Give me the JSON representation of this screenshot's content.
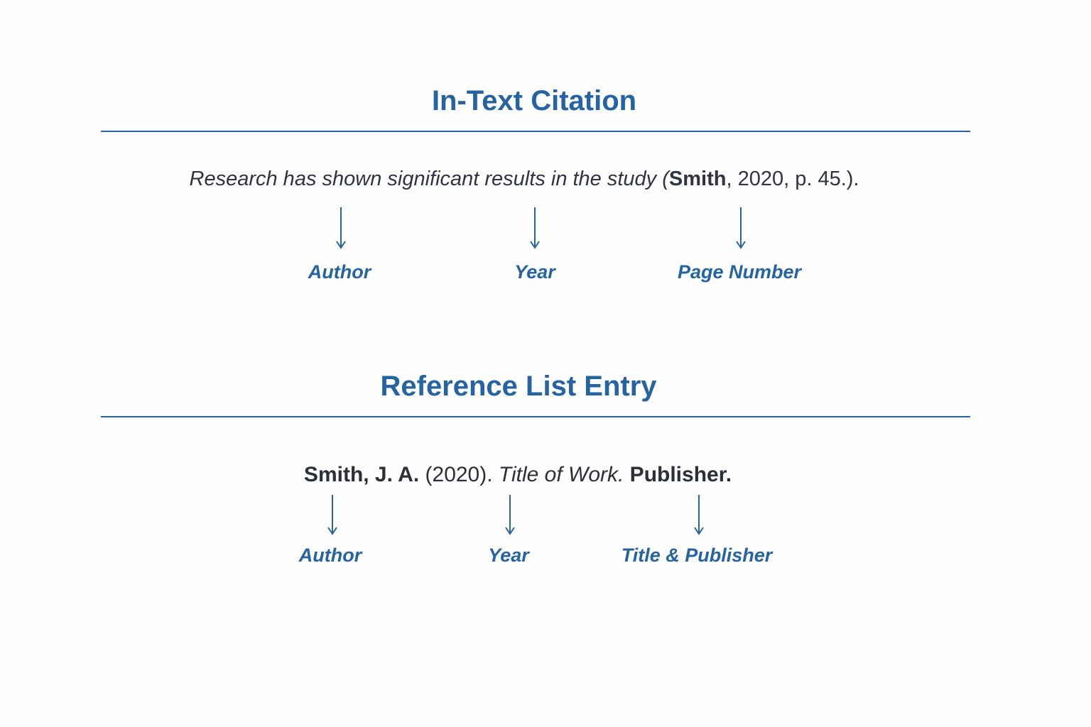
{
  "colors": {
    "accent": "#2563a3",
    "text": "#2a2f38"
  },
  "in_text": {
    "heading": "In-Text Citation",
    "sentence_prefix": "Research has shown significant results in the study (",
    "sentence_author": "Smith",
    "sentence_suffix": ", 2020, p. 45.).",
    "labels": [
      "Author",
      "Year",
      "Page Number"
    ]
  },
  "reference": {
    "heading": "Reference List Entry",
    "author": "Smith, J. A.",
    "year": " (2020). ",
    "title": "Title of Work.",
    "publisher": " Publisher.",
    "labels": [
      "Author",
      "Year",
      "Title & Publisher"
    ]
  }
}
